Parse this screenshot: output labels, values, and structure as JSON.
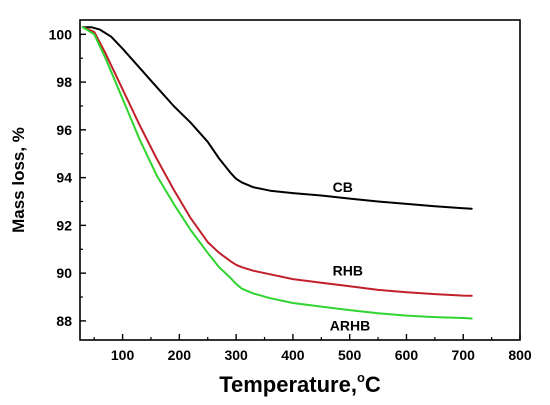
{
  "chart_data": {
    "type": "line",
    "title": "",
    "xlabel": "Temperature,",
    "xlabel_unit": "C",
    "xlabel_degree": "o",
    "ylabel": "Mass loss, %",
    "xlim": [
      25,
      800
    ],
    "ylim": [
      87.2,
      100.6
    ],
    "xticks": [
      100,
      200,
      300,
      400,
      500,
      600,
      700,
      800
    ],
    "yticks": [
      88,
      90,
      92,
      94,
      96,
      98,
      100
    ],
    "grid": false,
    "legend": "none",
    "series": [
      {
        "name": "CB",
        "color": "#000000",
        "label_at": [
          470,
          93.4
        ],
        "x": [
          30,
          45,
          60,
          80,
          100,
          130,
          160,
          190,
          220,
          250,
          270,
          290,
          300,
          310,
          330,
          360,
          400,
          450,
          500,
          550,
          600,
          650,
          700,
          715
        ],
        "y": [
          100.3,
          100.3,
          100.2,
          99.9,
          99.4,
          98.6,
          97.8,
          97.0,
          96.3,
          95.5,
          94.8,
          94.2,
          93.95,
          93.8,
          93.6,
          93.45,
          93.35,
          93.25,
          93.12,
          93.0,
          92.9,
          92.8,
          92.72,
          92.7
        ]
      },
      {
        "name": "RHB",
        "color": "#c0202a",
        "label_at": [
          470,
          89.9
        ],
        "x": [
          30,
          50,
          70,
          100,
          130,
          160,
          190,
          220,
          250,
          270,
          290,
          300,
          310,
          330,
          360,
          400,
          450,
          500,
          550,
          600,
          650,
          700,
          715
        ],
        "y": [
          100.3,
          100.1,
          99.2,
          97.7,
          96.2,
          94.8,
          93.5,
          92.3,
          91.3,
          90.85,
          90.5,
          90.35,
          90.25,
          90.1,
          89.95,
          89.75,
          89.6,
          89.45,
          89.3,
          89.2,
          89.12,
          89.06,
          89.05
        ]
      },
      {
        "name": "ARHB",
        "color": "#2fd42f",
        "label_at": [
          465,
          87.6
        ],
        "x": [
          30,
          50,
          70,
          100,
          130,
          160,
          190,
          220,
          250,
          270,
          290,
          300,
          310,
          330,
          360,
          400,
          450,
          500,
          550,
          600,
          650,
          700,
          715
        ],
        "y": [
          100.3,
          100.0,
          99.0,
          97.3,
          95.6,
          94.1,
          92.9,
          91.8,
          90.85,
          90.25,
          89.8,
          89.55,
          89.35,
          89.15,
          88.95,
          88.75,
          88.6,
          88.45,
          88.32,
          88.22,
          88.16,
          88.12,
          88.1
        ]
      }
    ]
  }
}
